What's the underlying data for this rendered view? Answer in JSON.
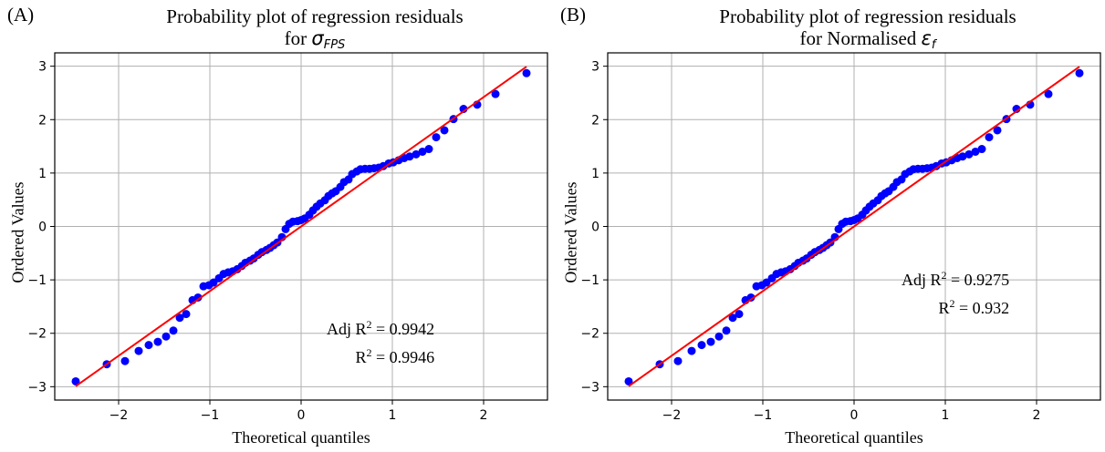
{
  "chart_data": [
    {
      "type": "scatter",
      "panel_label": "(A)",
      "title_line1": "Probability plot of regression residuals",
      "title_line2_prefix": "for ",
      "title_symbol": "σ",
      "title_subscript": "FPS",
      "xlabel": "Theoretical quantiles",
      "ylabel": "Ordered Values",
      "xlim": [
        -2.7,
        2.7
      ],
      "ylim": [
        -3.25,
        3.25
      ],
      "xticks": [
        -2,
        -1,
        0,
        1,
        2
      ],
      "yticks": [
        -3,
        -2,
        -1,
        0,
        1,
        2,
        3
      ],
      "grid": true,
      "annotation": {
        "line1_prefix": "Adj R",
        "line1_sup": "2",
        "line1_value": " = 0.9942",
        "line2_prefix": "R",
        "line2_sup": "2",
        "line2_value": " = 0.9946"
      },
      "fit_line": {
        "x": [
          -2.47,
          2.47
        ],
        "y": [
          -2.99,
          2.99
        ],
        "color": "#ff0000"
      },
      "point_color": "#0000ff",
      "points": {
        "x": [
          -2.47,
          -2.13,
          -1.93,
          -1.78,
          -1.67,
          -1.57,
          -1.48,
          -1.4,
          -1.33,
          -1.26,
          -1.19,
          -1.13,
          -1.07,
          -1.01,
          -0.96,
          -0.9,
          -0.85,
          -0.8,
          -0.75,
          -0.7,
          -0.65,
          -0.61,
          -0.56,
          -0.52,
          -0.47,
          -0.43,
          -0.38,
          -0.34,
          -0.3,
          -0.26,
          -0.21,
          -0.17,
          -0.13,
          -0.09,
          -0.04,
          0.0,
          0.04,
          0.09,
          0.13,
          0.17,
          0.21,
          0.26,
          0.3,
          0.34,
          0.38,
          0.43,
          0.47,
          0.52,
          0.56,
          0.61,
          0.65,
          0.7,
          0.75,
          0.8,
          0.85,
          0.9,
          0.96,
          1.01,
          1.07,
          1.13,
          1.19,
          1.26,
          1.33,
          1.4,
          1.48,
          1.57,
          1.67,
          1.78,
          1.93,
          2.13,
          2.47
        ],
        "y": [
          -2.9,
          -2.58,
          -2.52,
          -2.33,
          -2.22,
          -2.16,
          -2.06,
          -1.95,
          -1.71,
          -1.64,
          -1.38,
          -1.33,
          -1.12,
          -1.1,
          -1.05,
          -0.97,
          -0.89,
          -0.86,
          -0.84,
          -0.8,
          -0.74,
          -0.68,
          -0.64,
          -0.6,
          -0.53,
          -0.48,
          -0.44,
          -0.4,
          -0.35,
          -0.3,
          -0.2,
          -0.05,
          0.05,
          0.09,
          0.1,
          0.12,
          0.15,
          0.22,
          0.3,
          0.37,
          0.43,
          0.49,
          0.57,
          0.62,
          0.66,
          0.74,
          0.83,
          0.88,
          0.98,
          1.03,
          1.07,
          1.08,
          1.08,
          1.09,
          1.1,
          1.13,
          1.18,
          1.2,
          1.24,
          1.28,
          1.31,
          1.35,
          1.4,
          1.45,
          1.67,
          1.8,
          2.01,
          2.2,
          2.28,
          2.48,
          2.87
        ]
      }
    },
    {
      "type": "scatter",
      "panel_label": "(B)",
      "title_line1": "Probability plot of regression residuals",
      "title_line2_prefix": "for Normalised ",
      "title_symbol": "ε",
      "title_subscript": "f",
      "xlabel": "Theoretical quantiles",
      "ylabel": "Ordered Values",
      "xlim": [
        -2.7,
        2.7
      ],
      "ylim": [
        -3.25,
        3.25
      ],
      "xticks": [
        -2,
        -1,
        0,
        1,
        2
      ],
      "yticks": [
        -3,
        -2,
        -1,
        0,
        1,
        2,
        3
      ],
      "grid": true,
      "annotation": {
        "line1_prefix": "Adj R",
        "line1_sup": "2",
        "line1_value": " = 0.9275",
        "line2_prefix": "R",
        "line2_sup": "2",
        "line2_value": " = 0.932"
      },
      "fit_line": {
        "x": [
          -2.47,
          2.47
        ],
        "y": [
          -2.99,
          2.99
        ],
        "color": "#ff0000"
      },
      "point_color": "#0000ff",
      "points": {
        "x": [
          -2.47,
          -2.13,
          -1.93,
          -1.78,
          -1.67,
          -1.57,
          -1.48,
          -1.4,
          -1.33,
          -1.26,
          -1.19,
          -1.13,
          -1.07,
          -1.01,
          -0.96,
          -0.9,
          -0.85,
          -0.8,
          -0.75,
          -0.7,
          -0.65,
          -0.61,
          -0.56,
          -0.52,
          -0.47,
          -0.43,
          -0.38,
          -0.34,
          -0.3,
          -0.26,
          -0.21,
          -0.17,
          -0.13,
          -0.09,
          -0.04,
          0.0,
          0.04,
          0.09,
          0.13,
          0.17,
          0.21,
          0.26,
          0.3,
          0.34,
          0.38,
          0.43,
          0.47,
          0.52,
          0.56,
          0.61,
          0.65,
          0.7,
          0.75,
          0.8,
          0.85,
          0.9,
          0.96,
          1.01,
          1.07,
          1.13,
          1.19,
          1.26,
          1.33,
          1.4,
          1.48,
          1.57,
          1.67,
          1.78,
          1.93,
          2.13,
          2.47
        ],
        "y": [
          -2.9,
          -2.58,
          -2.52,
          -2.33,
          -2.22,
          -2.16,
          -2.06,
          -1.95,
          -1.71,
          -1.64,
          -1.38,
          -1.33,
          -1.12,
          -1.1,
          -1.05,
          -0.97,
          -0.89,
          -0.86,
          -0.84,
          -0.8,
          -0.74,
          -0.68,
          -0.64,
          -0.6,
          -0.53,
          -0.48,
          -0.44,
          -0.4,
          -0.35,
          -0.3,
          -0.2,
          -0.05,
          0.05,
          0.09,
          0.1,
          0.12,
          0.15,
          0.22,
          0.3,
          0.37,
          0.43,
          0.49,
          0.57,
          0.62,
          0.66,
          0.74,
          0.83,
          0.88,
          0.98,
          1.03,
          1.07,
          1.08,
          1.08,
          1.09,
          1.1,
          1.13,
          1.18,
          1.2,
          1.24,
          1.28,
          1.31,
          1.35,
          1.4,
          1.45,
          1.67,
          1.8,
          2.01,
          2.2,
          2.28,
          2.48,
          2.87
        ]
      }
    }
  ]
}
